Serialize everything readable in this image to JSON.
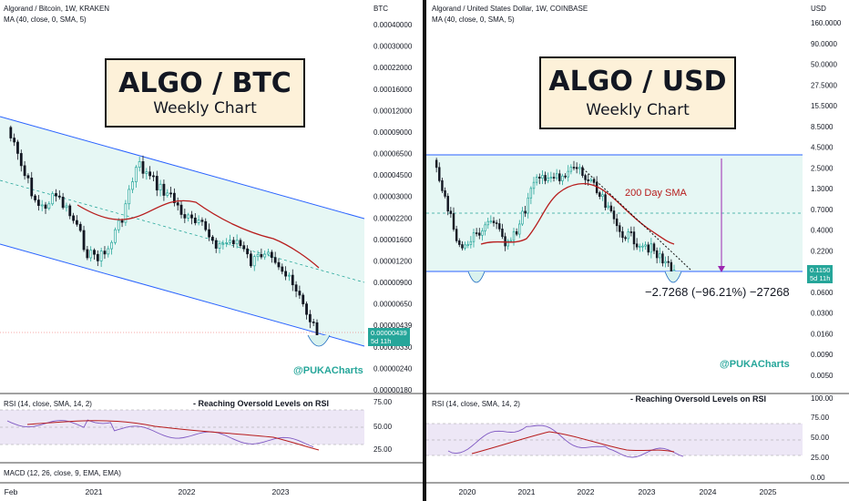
{
  "colors": {
    "up": "#26a69a",
    "down": "#131722",
    "sma": "#b71c1c",
    "channel": "#2962ff",
    "rsi": "#7e57c2",
    "fill": "#e0f5f1"
  },
  "left": {
    "header": "Algorand / Bitcoin, 1W, KRAKEN",
    "ma_label": "MA (40, close, 0, SMA, 5)",
    "axis_unit": "BTC",
    "y_ticks": [
      "0.00040000",
      "0.00030000",
      "0.00022000",
      "0.00016000",
      "0.00012000",
      "0.00009000",
      "0.00006500",
      "0.00004500",
      "0.00003000",
      "0.00002200",
      "0.00001600",
      "0.00001200",
      "0.00000900",
      "0.00000650",
      "0.00000439",
      "0.00000330",
      "0.00000240",
      "0.00000180"
    ],
    "title": "ALGO / BTC",
    "subtitle": "Weekly Chart",
    "price_badge": "0.00000439",
    "countdown": "5d 11h",
    "watermark": "@PUKACharts",
    "rsi_label": "RSI (14, close, SMA, 14, 2)",
    "rsi_note": "- Reaching Oversold Levels on RSI",
    "rsi_ticks": [
      "75.00",
      "50.00",
      "25.00"
    ],
    "macd_label": "MACD (12, 26, close, 9, EMA, EMA)",
    "x_ticks": [
      "Feb",
      "2021",
      "2022",
      "2023"
    ]
  },
  "right": {
    "header": "Algorand / United States Dollar, 1W, COINBASE",
    "ma_label": "MA (40, close, 0, SMA, 5)",
    "axis_unit": "USD",
    "y_ticks": [
      "160.0000",
      "90.0000",
      "50.0000",
      "27.5000",
      "15.5000",
      "8.5000",
      "4.5000",
      "2.5000",
      "1.3000",
      "0.7000",
      "0.4000",
      "0.2200",
      "0.1150",
      "0.0600",
      "0.0300",
      "0.0160",
      "0.0090",
      "0.0050"
    ],
    "title": "ALGO / USD",
    "subtitle": "Weekly Chart",
    "sma_label": "200 Day SMA",
    "measure_label": "−2.7268 (−96.21%) −27268",
    "price_badge": "0.1150",
    "countdown": "5d 11h",
    "watermark": "@PUKACharts",
    "rsi_label": "RSI (14, close, SMA, 14, 2)",
    "rsi_note": "- Reaching Oversold Levels on RSI",
    "rsi_ticks": [
      "100.00",
      "75.00",
      "50.00",
      "25.00",
      "0.00"
    ],
    "x_ticks": [
      "2020",
      "2021",
      "2022",
      "2023",
      "2024",
      "2025"
    ]
  },
  "chart_data": [
    {
      "type": "candlestick",
      "title": "ALGO / BTC",
      "subtitle": "Weekly Chart",
      "ylabel": "BTC",
      "y_scale": "log",
      "ylim": [
        1.8e-06,
        0.0004
      ],
      "x_ticks": [
        "Feb",
        "2021",
        "2022",
        "2023"
      ],
      "series": [
        {
          "name": "MA (40, close, 0, SMA, 5)",
          "type": "line"
        },
        {
          "name": "RSI (14, close, SMA, 14, 2)",
          "type": "line",
          "ylim": [
            0,
            100
          ],
          "ticks": [
            25,
            50,
            75
          ]
        }
      ],
      "last_price": 4.39e-06,
      "annotations": [
        "- Reaching Oversold Levels on RSI"
      ]
    },
    {
      "type": "candlestick",
      "title": "ALGO / USD",
      "subtitle": "Weekly Chart",
      "ylabel": "USD",
      "y_scale": "log",
      "ylim": [
        0.005,
        160
      ],
      "x_ticks": [
        "2020",
        "2021",
        "2022",
        "2023",
        "2024",
        "2025"
      ],
      "series": [
        {
          "name": "200 Day SMA",
          "type": "line"
        },
        {
          "name": "RSI (14, close, SMA, 14, 2)",
          "type": "line",
          "ylim": [
            0,
            100
          ],
          "ticks": [
            0,
            25,
            50,
            75,
            100
          ]
        }
      ],
      "last_price": 0.115,
      "measure": {
        "change": -2.7268,
        "percent": -96.21,
        "ticks": -27268
      },
      "annotations": [
        "200 Day SMA",
        "−2.7268 (−96.21%) −27268",
        "- Reaching Oversold Levels on RSI"
      ]
    }
  ]
}
